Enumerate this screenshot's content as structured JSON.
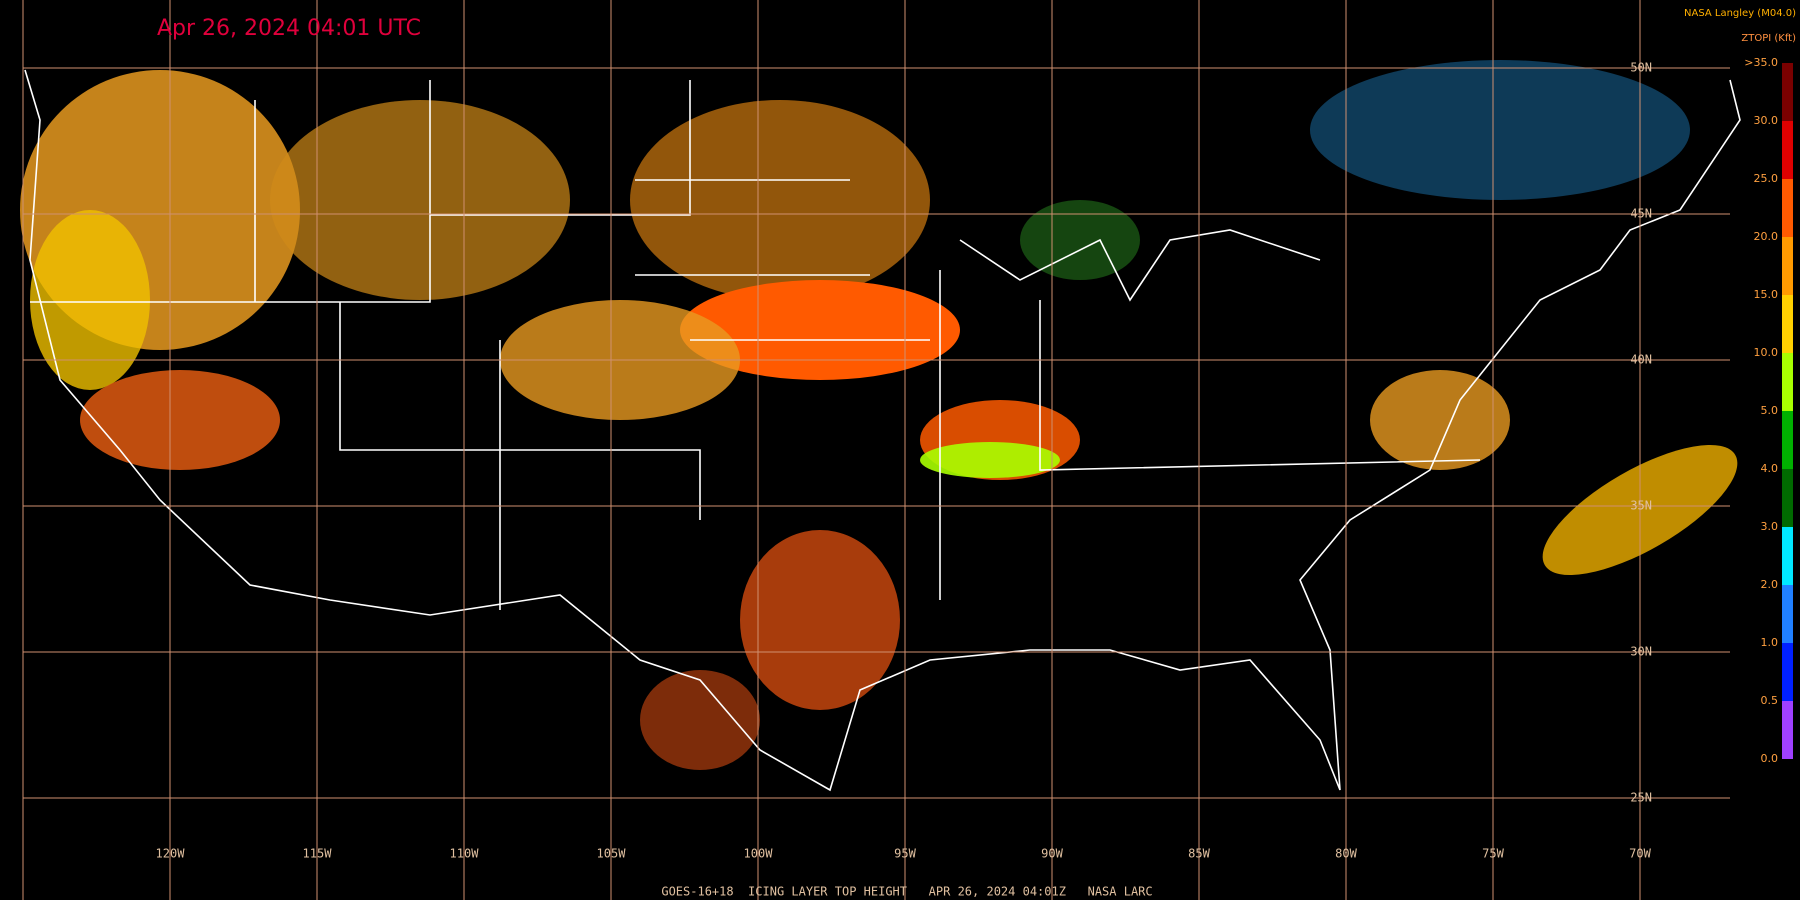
{
  "header": {
    "title": "Apr 26, 2024 04:01 UTC",
    "source": "NASA Langley (M04.0)",
    "product": "ZTOPI (Kft)"
  },
  "map": {
    "latitude_labels": [
      "50N",
      "45N",
      "40N",
      "35N",
      "30N",
      "25N"
    ],
    "longitude_labels": [
      "120W",
      "115W",
      "110W",
      "105W",
      "100W",
      "95W",
      "90W",
      "85W",
      "80W",
      "75W",
      "70W"
    ]
  },
  "colorbar": {
    "labels": [
      ">35.0",
      "30.0",
      "25.0",
      "20.0",
      "15.0",
      "10.0",
      "5.0",
      "4.0",
      "3.0",
      "2.0",
      "1.0",
      "0.5",
      "0.0"
    ],
    "colors": [
      "#7a0000",
      "#e00000",
      "#ff5a00",
      "#ff9a00",
      "#ffd000",
      "#a8ff00",
      "#00b000",
      "#006a00",
      "#00e8ff",
      "#2080ff",
      "#0020ff",
      "#a040ff"
    ]
  },
  "footer": {
    "text": "GOES-16+18  ICING LAYER TOP HEIGHT   APR 26, 2024 04:01Z   NASA LARC"
  }
}
